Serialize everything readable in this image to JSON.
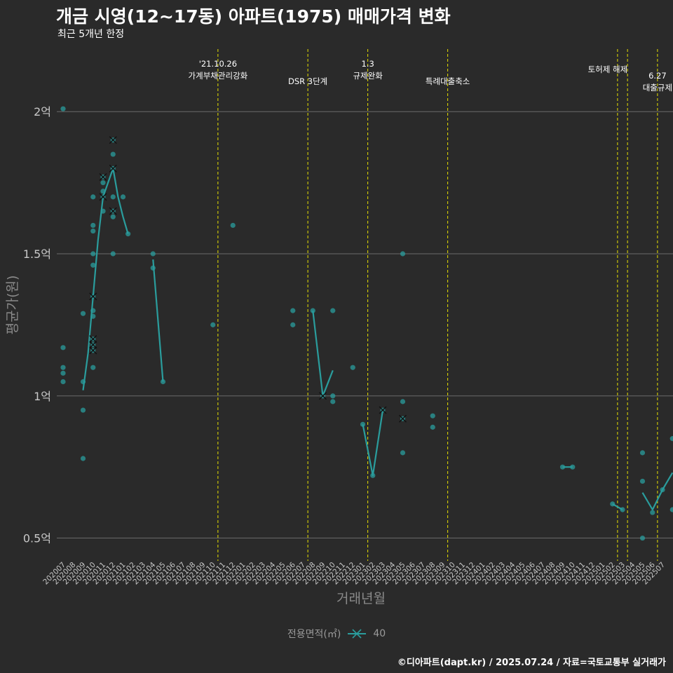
{
  "chart_data": {
    "type": "line",
    "title": "개금 시영(12~17동) 아파트(1975) 매매가격 변화",
    "subtitle": "최근 5개년 한정",
    "xlabel": "거래년월",
    "ylabel": "평균가(원)",
    "ylim": [
      0.42,
      2.22
    ],
    "yticks": [
      {
        "value": 0.5,
        "label": "0.5억"
      },
      {
        "value": 1.0,
        "label": "1억"
      },
      {
        "value": 1.5,
        "label": "1.5억"
      },
      {
        "value": 2.0,
        "label": "2억"
      }
    ],
    "categories": [
      "202007",
      "202008",
      "202009",
      "202010",
      "202011",
      "202012",
      "202101",
      "202102",
      "202103",
      "202104",
      "202105",
      "202106",
      "202107",
      "202108",
      "202109",
      "202110",
      "202111",
      "202112",
      "202201",
      "202202",
      "202203",
      "202204",
      "202205",
      "202206",
      "202207",
      "202208",
      "202209",
      "202210",
      "202211",
      "202212",
      "202301",
      "202302",
      "202303",
      "202304",
      "202305",
      "202306",
      "202307",
      "202308",
      "202309",
      "202310",
      "202311",
      "202312",
      "202401",
      "202402",
      "202403",
      "202404",
      "202405",
      "202406",
      "202407",
      "202408",
      "202409",
      "202410",
      "202411",
      "202412",
      "202501",
      "202502",
      "202503",
      "202504",
      "202505",
      "202506",
      "202507"
    ],
    "series": [
      {
        "name": "40",
        "color": "#2a9d9d",
        "line": [
          [
            2.0,
            1.02
          ],
          [
            2.5,
            1.15
          ],
          [
            3.0,
            1.35
          ],
          [
            3.5,
            1.55
          ],
          [
            4.0,
            1.7
          ],
          [
            4.5,
            1.75
          ],
          [
            5.0,
            1.8
          ],
          [
            5.5,
            1.7
          ],
          [
            6.0,
            1.63
          ],
          [
            6.5,
            1.57
          ],
          [
            null,
            null
          ],
          [
            9.0,
            1.48
          ],
          [
            10.0,
            1.05
          ],
          [
            null,
            null
          ],
          [
            25.0,
            1.3
          ],
          [
            26.0,
            1.0
          ],
          [
            27.0,
            1.09
          ],
          [
            null,
            null
          ],
          [
            30.0,
            0.9
          ],
          [
            31.0,
            0.72
          ],
          [
            32.0,
            0.95
          ],
          [
            null,
            null
          ],
          [
            50.0,
            0.75
          ],
          [
            51.0,
            0.75
          ],
          [
            null,
            null
          ],
          [
            55.0,
            0.62
          ],
          [
            56.0,
            0.6
          ],
          [
            null,
            null
          ],
          [
            58.0,
            0.66
          ],
          [
            59.0,
            0.6
          ],
          [
            60.0,
            0.67
          ],
          [
            61.0,
            0.73
          ]
        ],
        "points": [
          [
            0.0,
            2.01
          ],
          [
            0.0,
            1.17
          ],
          [
            0.0,
            1.1
          ],
          [
            0.0,
            1.08
          ],
          [
            0.0,
            1.05
          ],
          [
            2.0,
            1.29
          ],
          [
            2.0,
            1.05
          ],
          [
            2.0,
            0.95
          ],
          [
            2.0,
            0.78
          ],
          [
            3.0,
            1.7
          ],
          [
            3.0,
            1.6
          ],
          [
            3.0,
            1.58
          ],
          [
            3.0,
            1.5
          ],
          [
            3.0,
            1.46
          ],
          [
            3.0,
            1.35
          ],
          [
            3.0,
            1.3
          ],
          [
            3.0,
            1.28
          ],
          [
            3.0,
            1.2
          ],
          [
            3.0,
            1.18
          ],
          [
            3.0,
            1.16
          ],
          [
            3.0,
            1.1
          ],
          [
            4.0,
            1.77
          ],
          [
            4.0,
            1.75
          ],
          [
            4.0,
            1.72
          ],
          [
            4.0,
            1.7
          ],
          [
            4.0,
            1.65
          ],
          [
            5.0,
            1.9
          ],
          [
            5.0,
            1.85
          ],
          [
            5.0,
            1.8
          ],
          [
            5.0,
            1.7
          ],
          [
            5.0,
            1.65
          ],
          [
            5.0,
            1.63
          ],
          [
            5.0,
            1.5
          ],
          [
            6.0,
            1.7
          ],
          [
            6.5,
            1.57
          ],
          [
            9.0,
            1.5
          ],
          [
            9.0,
            1.45
          ],
          [
            10.0,
            1.05
          ],
          [
            15.0,
            1.25
          ],
          [
            17.0,
            1.6
          ],
          [
            23.0,
            1.3
          ],
          [
            23.0,
            1.25
          ],
          [
            25.0,
            1.3
          ],
          [
            26.0,
            1.0
          ],
          [
            27.0,
            1.3
          ],
          [
            27.0,
            1.0
          ],
          [
            27.0,
            0.98
          ],
          [
            29.0,
            1.1
          ],
          [
            30.0,
            0.9
          ],
          [
            31.0,
            0.72
          ],
          [
            32.0,
            0.95
          ],
          [
            34.0,
            1.5
          ],
          [
            34.0,
            0.98
          ],
          [
            34.0,
            0.92
          ],
          [
            34.0,
            0.8
          ],
          [
            37.0,
            0.93
          ],
          [
            37.0,
            0.89
          ],
          [
            50.0,
            0.75
          ],
          [
            51.0,
            0.75
          ],
          [
            55.0,
            0.62
          ],
          [
            56.0,
            0.6
          ],
          [
            58.0,
            0.8
          ],
          [
            58.0,
            0.7
          ],
          [
            58.0,
            0.5
          ],
          [
            59.0,
            0.59
          ],
          [
            60.0,
            0.67
          ],
          [
            61.0,
            0.85
          ],
          [
            61.0,
            0.6
          ]
        ],
        "crosses": [
          [
            3.0,
            1.35
          ],
          [
            3.0,
            1.2
          ],
          [
            3.0,
            1.18
          ],
          [
            3.0,
            1.16
          ],
          [
            4.0,
            1.77
          ],
          [
            4.0,
            1.7
          ],
          [
            5.0,
            1.9
          ],
          [
            5.0,
            1.8
          ],
          [
            5.0,
            1.65
          ],
          [
            26.0,
            1.0
          ],
          [
            32.0,
            0.95
          ],
          [
            34.0,
            0.92
          ]
        ]
      }
    ],
    "annotations": [
      {
        "x": 15.5,
        "lines": [
          "'21.10.26",
          "가계부채관리강화"
        ]
      },
      {
        "x": 24.5,
        "lines": [
          "DSR 3단계"
        ]
      },
      {
        "x": 30.5,
        "lines": [
          "1.3",
          "규제완화"
        ]
      },
      {
        "x": 38.5,
        "lines": [
          "특례대출축소"
        ]
      },
      {
        "x": 55.5,
        "lines": [
          "토허제 해제"
        ]
      },
      {
        "x": 56.5,
        "lines": []
      },
      {
        "x": 59.5,
        "lines": [
          "6.27",
          "대출규제"
        ]
      }
    ],
    "legend": {
      "title": "전용면적(㎡)",
      "label": "40",
      "placement": "bottom"
    }
  },
  "caption": "©디아파트(dapt.kr) / 2025.07.24 / 자료=국토교통부 실거래가",
  "colors": {
    "background": "#2a2a2a",
    "grid": "#6a6a6a",
    "series": "#2a9d9d",
    "vline": "#e8e000",
    "text": "#ffffff",
    "muted": "#9a9a9a",
    "axis_text": "#c8c8c8"
  }
}
